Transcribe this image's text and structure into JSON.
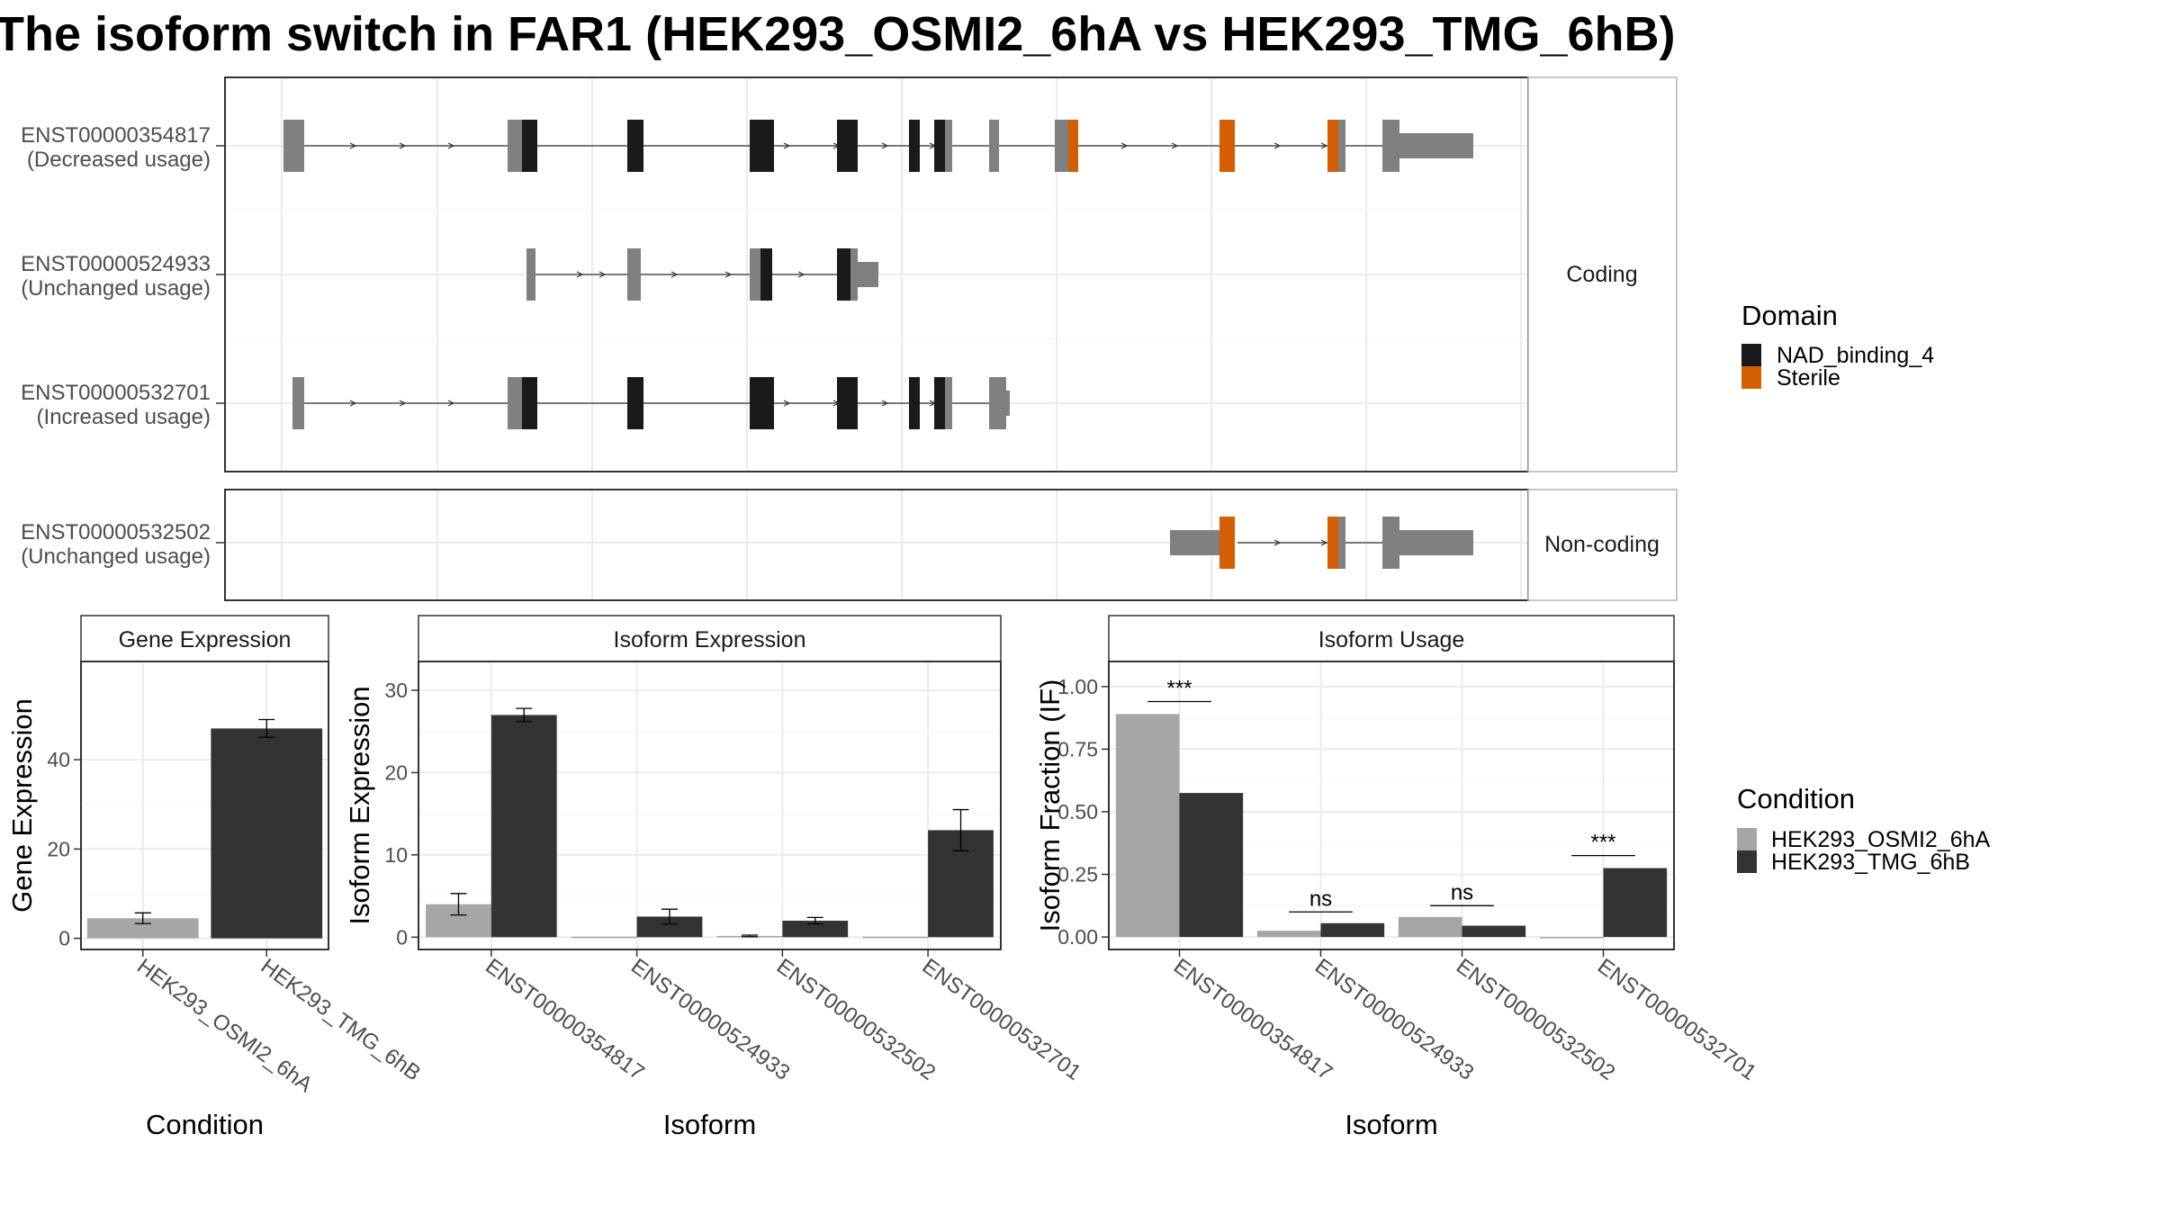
{
  "title": "The isoform switch in FAR1 (HEK293_OSMI2_6hA vs HEK293_TMG_6hB)",
  "colors": {
    "nad": "#1a1a1a",
    "sterile": "#d55e00",
    "other_exon": "#808080",
    "cond1": "#a6a6a6",
    "cond2": "#333333",
    "grid": "#ebebeb",
    "strip_bg": "#ffffff",
    "panel_border": "#333333",
    "strip_border": "#b3b3b3"
  },
  "transcripts": {
    "coding_label": "Coding",
    "noncoding_label": "Non-coding",
    "rows": [
      {
        "id": "ENST00000354817",
        "usage": "(Decreased usage)",
        "group": "coding"
      },
      {
        "id": "ENST00000524933",
        "usage": "(Unchanged usage)",
        "group": "coding"
      },
      {
        "id": "ENST00000532701",
        "usage": "(Increased usage)",
        "group": "coding"
      },
      {
        "id": "ENST00000532502",
        "usage": "(Unchanged usage)",
        "group": "noncoding"
      }
    ]
  },
  "legends": {
    "domain": {
      "title": "Domain",
      "items": [
        "NAD_binding_4",
        "Sterile"
      ]
    },
    "condition": {
      "title": "Condition",
      "items": [
        "HEK293_OSMI2_6hA",
        "HEK293_TMG_6hB"
      ]
    }
  },
  "chart_data": [
    {
      "type": "bar",
      "title": "Gene Expression",
      "xlabel": "Condition",
      "ylabel": "Gene Expression",
      "ylim": [
        -2.5,
        62
      ],
      "yticks": [
        0,
        20,
        40
      ],
      "categories": [
        "HEK293_OSMI2_6hA",
        "HEK293_TMG_6hB"
      ],
      "values": [
        4.5,
        47
      ],
      "errors": [
        [
          3.3,
          5.7
        ],
        [
          45,
          49
        ]
      ]
    },
    {
      "type": "bar",
      "title": "Isoform Expression",
      "xlabel": "Isoform",
      "ylabel": "Isoform Expression",
      "ylim": [
        -1.5,
        33.5
      ],
      "yticks": [
        0,
        10,
        20,
        30
      ],
      "categories": [
        "ENST00000354817",
        "ENST00000524933",
        "ENST00000532502",
        "ENST00000532701"
      ],
      "series": [
        {
          "name": "HEK293_OSMI2_6hA",
          "values": [
            4,
            0.05,
            0.15,
            0.05
          ],
          "errors": [
            [
              2.7,
              5.3
            ],
            null,
            [
              0.05,
              0.25
            ],
            null
          ]
        },
        {
          "name": "HEK293_TMG_6hB",
          "values": [
            27,
            2.5,
            2,
            13
          ],
          "errors": [
            [
              26.2,
              27.8
            ],
            [
              1.6,
              3.4
            ],
            [
              1.6,
              2.4
            ],
            [
              10.5,
              15.5
            ]
          ]
        }
      ]
    },
    {
      "type": "bar",
      "title": "Isoform Usage",
      "xlabel": "Isoform",
      "ylabel": "Isoform Fraction (IF)",
      "ylim": [
        -0.05,
        1.1
      ],
      "yticks": [
        0.0,
        0.25,
        0.5,
        0.75,
        1.0
      ],
      "ytick_labels": [
        "0.00",
        "0.25",
        "0.50",
        "0.75",
        "1.00"
      ],
      "categories": [
        "ENST00000354817",
        "ENST00000524933",
        "ENST00000532502",
        "ENST00000532701"
      ],
      "series": [
        {
          "name": "HEK293_OSMI2_6hA",
          "values": [
            0.89,
            0.025,
            0.08,
            0.0
          ]
        },
        {
          "name": "HEK293_TMG_6hB",
          "values": [
            0.575,
            0.055,
            0.045,
            0.275
          ]
        }
      ],
      "significance": [
        "***",
        "ns",
        "ns",
        "***"
      ],
      "significance_y": [
        0.94,
        0.1,
        0.125,
        0.325
      ]
    }
  ]
}
